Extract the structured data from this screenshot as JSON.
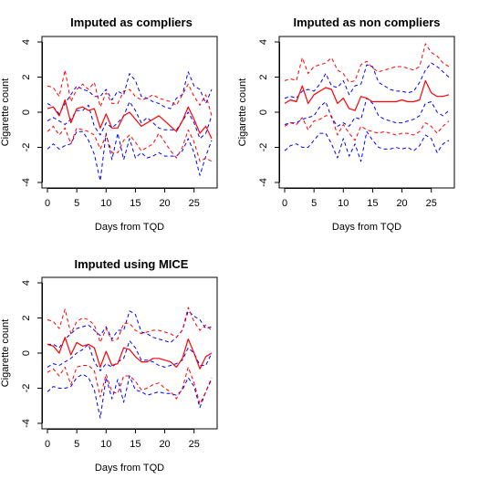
{
  "colors": {
    "red": "#ff0000",
    "blue": "#0000ff",
    "axis": "#000000"
  },
  "chart_data": [
    {
      "type": "line",
      "title": "Imputed as compliers",
      "xlabel": "Days from TQD",
      "ylabel": "Cigarette count",
      "xlim": [
        0,
        28
      ],
      "ylim": [
        -4,
        4
      ],
      "xticks": [
        0,
        5,
        10,
        15,
        20,
        25
      ],
      "yticks": [
        -4,
        -2,
        0,
        2,
        4
      ],
      "x": [
        0,
        1,
        2,
        3,
        4,
        5,
        6,
        7,
        8,
        9,
        10,
        11,
        12,
        13,
        14,
        15,
        16,
        17,
        18,
        19,
        20,
        21,
        22,
        23,
        24,
        25,
        26,
        27,
        28
      ],
      "series": [
        {
          "color": "red",
          "style": "solid",
          "values": [
            0.2,
            0.3,
            -0.2,
            0.7,
            -0.6,
            0.2,
            0.3,
            0.1,
            0.2,
            -0.9,
            -0.1,
            -0.9,
            -0.9,
            -0.2,
            0.0,
            -0.4,
            -0.8,
            -0.6,
            -0.4,
            -0.2,
            -0.5,
            -0.8,
            -1.1,
            -0.5,
            0.3,
            -0.4,
            -1.2,
            -0.8,
            -1.5
          ]
        },
        {
          "color": "red",
          "style": "dashed",
          "values": [
            1.5,
            1.4,
            0.9,
            2.4,
            0.6,
            1.3,
            1.6,
            1.3,
            1.7,
            0.3,
            1.1,
            0.5,
            0.5,
            1.2,
            1.3,
            0.9,
            0.7,
            0.8,
            1.0,
            0.8,
            0.7,
            0.6,
            0.4,
            1.0,
            1.6,
            0.9,
            0.4,
            1.0,
            -0.2
          ]
        },
        {
          "color": "red",
          "style": "dashed",
          "values": [
            -1.1,
            -0.8,
            -1.3,
            -0.9,
            -1.8,
            -0.9,
            -1.0,
            -1.1,
            -1.3,
            -2.1,
            -1.3,
            -2.3,
            -2.3,
            -1.6,
            -1.3,
            -1.7,
            -2.2,
            -2.0,
            -1.8,
            -1.2,
            -1.7,
            -2.2,
            -2.6,
            -2.0,
            -1.0,
            -1.7,
            -2.8,
            -2.6,
            -2.8
          ]
        },
        {
          "color": "blue",
          "style": "dashed",
          "values": [
            0.5,
            0.3,
            -0.1,
            0.5,
            1.0,
            1.5,
            1.3,
            1.2,
            0.9,
            0.9,
            1.3,
            0.7,
            1.2,
            1.0,
            2.2,
            1.8,
            0.9,
            0.8,
            0.6,
            0.5,
            0.3,
            0.2,
            0.8,
            1.0,
            2.3,
            1.5,
            1.3,
            0.5,
            1.3
          ]
        },
        {
          "color": "blue",
          "style": "dashed",
          "values": [
            -0.5,
            -0.3,
            -0.5,
            -0.7,
            -0.4,
            0.1,
            0.1,
            0.4,
            -0.8,
            -1.3,
            -0.6,
            -0.9,
            -0.6,
            -0.2,
            0.6,
            0.1,
            -0.6,
            -0.3,
            -0.6,
            -0.9,
            -1.0,
            -1.0,
            -1.0,
            -0.5,
            0.0,
            -0.6,
            -1.5,
            -1.2,
            -0.2
          ]
        },
        {
          "color": "blue",
          "style": "dashed",
          "values": [
            -2.1,
            -1.8,
            -2.1,
            -1.9,
            -1.8,
            -1.1,
            -1.1,
            -1.6,
            -2.4,
            -3.9,
            -1.2,
            -2.7,
            -1.2,
            -2.7,
            -1.5,
            -2.6,
            -2.3,
            -2.6,
            -2.5,
            -2.3,
            -2.5,
            -2.5,
            -2.5,
            -2.2,
            -1.5,
            -2.3,
            -3.6,
            -2.5,
            -1.6
          ]
        }
      ]
    },
    {
      "type": "line",
      "title": "Imputed as non compliers",
      "xlabel": "Days from TQD",
      "ylabel": "Cigarette count",
      "xlim": [
        0,
        28
      ],
      "ylim": [
        -4,
        4
      ],
      "xticks": [
        0,
        5,
        10,
        15,
        20,
        25
      ],
      "yticks": [
        -4,
        -2,
        0,
        2,
        4
      ],
      "x": [
        0,
        1,
        2,
        3,
        4,
        5,
        6,
        7,
        8,
        9,
        10,
        11,
        12,
        13,
        14,
        15,
        16,
        17,
        18,
        19,
        20,
        21,
        22,
        23,
        24,
        25,
        26,
        27,
        28
      ],
      "series": [
        {
          "color": "red",
          "style": "solid",
          "values": [
            0.5,
            0.7,
            0.6,
            1.5,
            0.5,
            1.0,
            1.2,
            1.4,
            1.3,
            0.5,
            0.8,
            0.2,
            0.1,
            0.9,
            0.8,
            0.6,
            0.6,
            0.6,
            0.6,
            0.6,
            0.7,
            0.6,
            0.6,
            0.7,
            1.8,
            1.1,
            0.9,
            0.9,
            1.0
          ]
        },
        {
          "color": "red",
          "style": "dashed",
          "values": [
            1.8,
            1.9,
            1.8,
            3.1,
            2.2,
            2.6,
            2.7,
            2.8,
            3.1,
            2.4,
            2.2,
            1.7,
            1.8,
            2.7,
            2.9,
            2.5,
            2.3,
            2.4,
            2.5,
            2.6,
            2.6,
            2.5,
            2.4,
            2.6,
            3.9,
            3.4,
            3.2,
            2.8,
            2.6
          ]
        },
        {
          "color": "red",
          "style": "dashed",
          "values": [
            -0.8,
            -0.6,
            -0.7,
            -0.3,
            -1.0,
            -0.5,
            -0.4,
            -0.2,
            -0.2,
            -1.3,
            -0.7,
            -1.2,
            -1.6,
            -0.8,
            -1.0,
            -1.1,
            -1.2,
            -1.1,
            -1.2,
            -1.3,
            -1.2,
            -1.2,
            -1.3,
            -1.1,
            -0.6,
            -0.8,
            -1.2,
            -0.8,
            -0.5
          ]
        },
        {
          "color": "blue",
          "style": "dashed",
          "values": [
            0.8,
            0.9,
            0.8,
            1.2,
            1.3,
            1.2,
            1.6,
            2.2,
            1.5,
            1.4,
            1.8,
            1.0,
            1.5,
            1.6,
            2.7,
            2.6,
            1.7,
            1.5,
            1.3,
            1.2,
            1.2,
            1.1,
            1.2,
            1.7,
            2.4,
            2.8,
            2.6,
            2.3,
            2.0
          ]
        },
        {
          "color": "blue",
          "style": "dashed",
          "values": [
            -0.7,
            -0.6,
            -0.6,
            -0.4,
            -0.3,
            -0.2,
            0.3,
            0.6,
            -0.3,
            -0.8,
            -0.6,
            -0.8,
            -0.3,
            -0.4,
            0.8,
            0.5,
            -0.2,
            -0.4,
            -0.5,
            -0.6,
            -0.6,
            -0.5,
            -0.4,
            -0.2,
            0.5,
            0.6,
            0.0,
            -0.2,
            0.1
          ]
        },
        {
          "color": "blue",
          "style": "dashed",
          "values": [
            -2.2,
            -1.9,
            -1.8,
            -2.0,
            -2.0,
            -1.6,
            -1.2,
            -1.2,
            -1.8,
            -2.6,
            -1.5,
            -2.5,
            -1.8,
            -2.8,
            -1.1,
            -1.6,
            -2.0,
            -2.1,
            -2.1,
            -2.0,
            -2.1,
            -2.0,
            -2.2,
            -1.9,
            -1.3,
            -1.5,
            -2.3,
            -1.8,
            -1.6
          ]
        }
      ]
    },
    {
      "type": "line",
      "title": "Imputed using MICE",
      "xlabel": "Days from TQD",
      "ylabel": "Cigarette count",
      "xlim": [
        0,
        28
      ],
      "ylim": [
        -4,
        4
      ],
      "xticks": [
        0,
        5,
        10,
        15,
        20,
        25
      ],
      "yticks": [
        -4,
        -2,
        0,
        2,
        4
      ],
      "x": [
        0,
        1,
        2,
        3,
        4,
        5,
        6,
        7,
        8,
        9,
        10,
        11,
        12,
        13,
        14,
        15,
        16,
        17,
        18,
        19,
        20,
        21,
        22,
        23,
        24,
        25,
        26,
        27,
        28
      ],
      "series": [
        {
          "color": "red",
          "style": "solid",
          "values": [
            0.5,
            0.4,
            0.0,
            0.9,
            -0.1,
            0.6,
            0.4,
            0.5,
            0.3,
            -0.8,
            0.1,
            -0.7,
            -0.6,
            0.3,
            0.2,
            -0.2,
            -0.5,
            -0.5,
            -0.3,
            -0.3,
            -0.4,
            -0.5,
            -0.8,
            -0.3,
            0.8,
            0.0,
            -0.9,
            -0.2,
            0.0
          ]
        },
        {
          "color": "red",
          "style": "dashed",
          "values": [
            1.9,
            1.8,
            1.4,
            2.5,
            1.1,
            1.8,
            2.0,
            1.9,
            1.6,
            0.6,
            1.4,
            0.7,
            0.8,
            1.7,
            1.7,
            1.3,
            1.1,
            1.2,
            1.3,
            1.3,
            1.2,
            1.1,
            0.9,
            1.3,
            2.6,
            1.8,
            1.3,
            1.6,
            1.3
          ]
        },
        {
          "color": "red",
          "style": "dashed",
          "values": [
            -1.1,
            -0.9,
            -1.3,
            -0.8,
            -1.8,
            -0.8,
            -0.7,
            -0.7,
            -1.0,
            -2.5,
            -1.2,
            -2.2,
            -2.3,
            -1.3,
            -1.3,
            -1.6,
            -2.1,
            -2.0,
            -1.8,
            -1.7,
            -2.0,
            -2.2,
            -2.6,
            -2.0,
            -0.8,
            -1.7,
            -2.9,
            -2.2,
            -1.5
          ]
        },
        {
          "color": "blue",
          "style": "dashed",
          "values": [
            0.5,
            0.5,
            0.3,
            0.8,
            1.1,
            1.4,
            1.5,
            1.6,
            1.3,
            1.0,
            1.5,
            0.8,
            1.3,
            1.3,
            2.4,
            2.2,
            1.2,
            1.1,
            0.9,
            0.8,
            0.7,
            0.6,
            0.9,
            1.3,
            2.4,
            2.1,
            1.9,
            1.4,
            1.5
          ]
        },
        {
          "color": "blue",
          "style": "dashed",
          "values": [
            -0.8,
            -0.6,
            -0.7,
            -0.5,
            -0.3,
            0.0,
            0.2,
            0.5,
            -0.5,
            -1.0,
            -0.6,
            -0.8,
            -0.5,
            -0.3,
            0.7,
            0.3,
            -0.4,
            -0.4,
            -0.5,
            -0.7,
            -0.8,
            -0.7,
            -0.6,
            -0.4,
            0.3,
            0.0,
            -0.7,
            -0.7,
            -0.0
          ]
        },
        {
          "color": "blue",
          "style": "dashed",
          "values": [
            -2.2,
            -1.9,
            -2.0,
            -2.0,
            -1.9,
            -1.4,
            -1.2,
            -1.4,
            -2.1,
            -3.7,
            -1.4,
            -2.6,
            -1.5,
            -2.8,
            -1.3,
            -2.1,
            -2.2,
            -2.4,
            -2.3,
            -2.2,
            -2.3,
            -2.3,
            -2.4,
            -2.1,
            -1.4,
            -1.9,
            -3.1,
            -2.2,
            -1.4
          ]
        }
      ]
    }
  ]
}
